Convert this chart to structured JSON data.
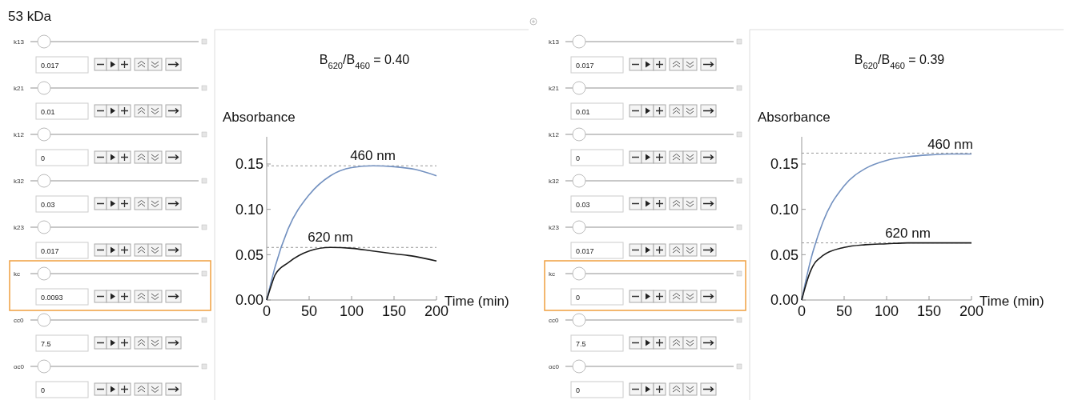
{
  "chart_data": [
    {
      "type": "other",
      "title": "53 kDa",
      "annotations": [
        "k13",
        "0.017",
        "k21",
        "0.01",
        "k12",
        "0",
        "k32",
        "0.03",
        "k23",
        "0.017",
        "kc",
        "0.0093",
        "cc0",
        "7.5",
        "oc0",
        "0"
      ]
    },
    {
      "type": "line",
      "title": "B$_{620}$/B$_{460}$ = 0.40",
      "xlabel": "Time (min)",
      "ylabel": "Absorbance",
      "xlim": [
        0,
        200
      ],
      "ylim": [
        0,
        0.18
      ],
      "xticks": [
        0,
        50,
        100,
        150,
        200
      ],
      "yticks": [
        {
          "value": 0,
          "label": "0.00"
        },
        {
          "value": 0.05,
          "label": "0.05"
        },
        {
          "value": 0.1,
          "label": "0.10"
        },
        {
          "value": 0.15,
          "label": "0.15"
        }
      ],
      "x": [
        0,
        5,
        10,
        25,
        50,
        75,
        100,
        125,
        150,
        175,
        200
      ],
      "series": [
        {
          "name": "460 nm",
          "color": "#7391c0",
          "values": [
            0,
            0.019,
            0.037,
            0.078,
            0.116,
            0.137,
            0.146,
            0.148,
            0.147,
            0.144,
            0.137
          ]
        },
        {
          "name": "620 nm",
          "color": "#1a1a1a",
          "values": [
            0,
            0.015,
            0.028,
            0.041,
            0.054,
            0.058,
            0.057,
            0.054,
            0.051,
            0.048,
            0.043
          ]
        }
      ],
      "ref_lines": [
        {
          "axis": "y",
          "value": 0.148,
          "color": "#999999",
          "line_style": "dashed"
        },
        {
          "axis": "y",
          "value": 0.058,
          "color": "#999999",
          "line_style": "dashed"
        }
      ]
    },
    {
      "type": "other",
      "annotations": [
        "k13",
        "0.017",
        "k21",
        "0.01",
        "k12",
        "0",
        "k32",
        "0.03",
        "k23",
        "0.017",
        "kc",
        "0",
        "cc0",
        "7.5",
        "oc0",
        "0"
      ]
    },
    {
      "type": "line",
      "title": "B$_{620}$/B$_{460}$ = 0.39",
      "xlabel": "Time (min)",
      "ylabel": "Absorbance",
      "xlim": [
        0,
        200
      ],
      "ylim": [
        0,
        0.18
      ],
      "xticks": [
        0,
        50,
        100,
        150,
        200
      ],
      "yticks": [
        {
          "value": 0,
          "label": "0.00"
        },
        {
          "value": 0.05,
          "label": "0.05"
        },
        {
          "value": 0.1,
          "label": "0.10"
        },
        {
          "value": 0.15,
          "label": "0.15"
        }
      ],
      "x": [
        0,
        5,
        10,
        25,
        50,
        75,
        100,
        125,
        150,
        175,
        200
      ],
      "series": [
        {
          "name": "460 nm",
          "color": "#7391c0",
          "values": [
            0,
            0.022,
            0.042,
            0.086,
            0.126,
            0.145,
            0.154,
            0.158,
            0.16,
            0.161,
            0.161
          ]
        },
        {
          "name": "620 nm",
          "color": "#1a1a1a",
          "values": [
            0,
            0.017,
            0.031,
            0.049,
            0.058,
            0.061,
            0.062,
            0.063,
            0.063,
            0.063,
            0.063
          ]
        }
      ],
      "ref_lines": [
        {
          "axis": "y",
          "value": 0.162,
          "color": "#999999",
          "line_style": "dashed"
        },
        {
          "axis": "y",
          "value": 0.063,
          "color": "#999999",
          "line_style": "dashed"
        }
      ]
    }
  ]
}
